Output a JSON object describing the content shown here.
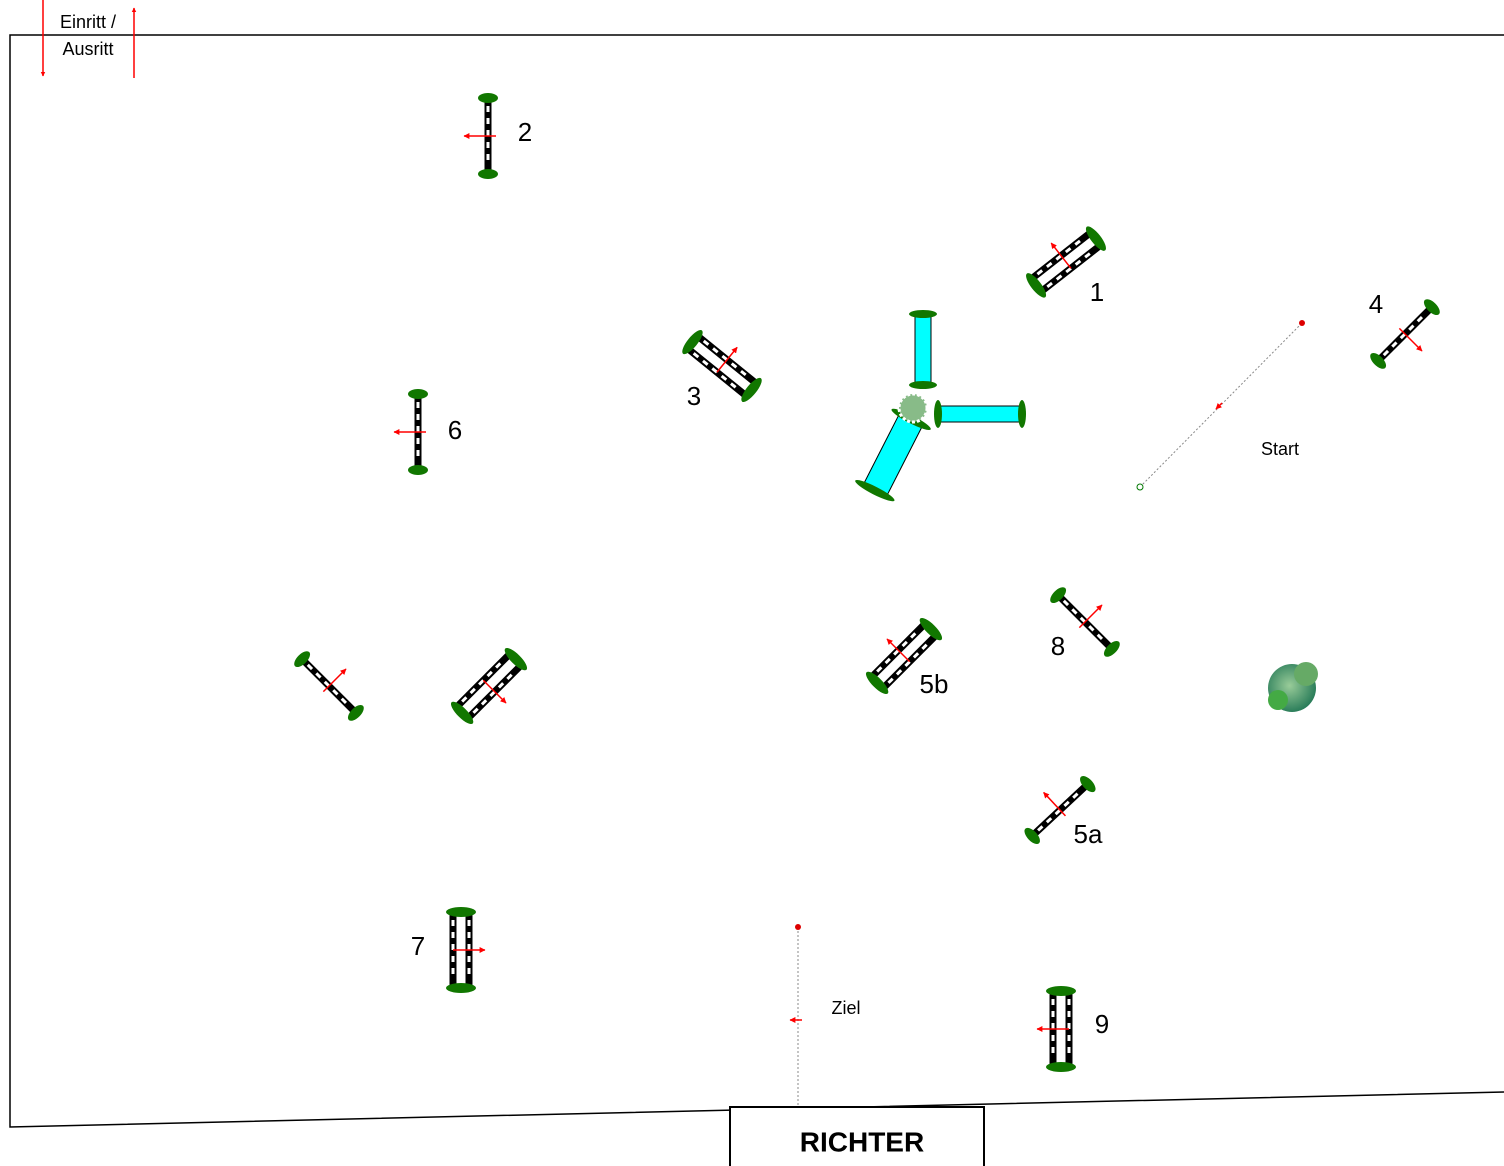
{
  "entrance": {
    "lines": [
      "Einritt /",
      "Ausritt"
    ]
  },
  "obstacles": [
    {
      "label": "1"
    },
    {
      "label": "2"
    },
    {
      "label": "3"
    },
    {
      "label": "4"
    },
    {
      "label": "5a"
    },
    {
      "label": "5b"
    },
    {
      "label": "6"
    },
    {
      "label": "7"
    },
    {
      "label": "8"
    },
    {
      "label": "9"
    }
  ],
  "start": {
    "label": "Start"
  },
  "finish": {
    "label": "Ziel"
  },
  "judge": {
    "label": "RICHTER"
  }
}
